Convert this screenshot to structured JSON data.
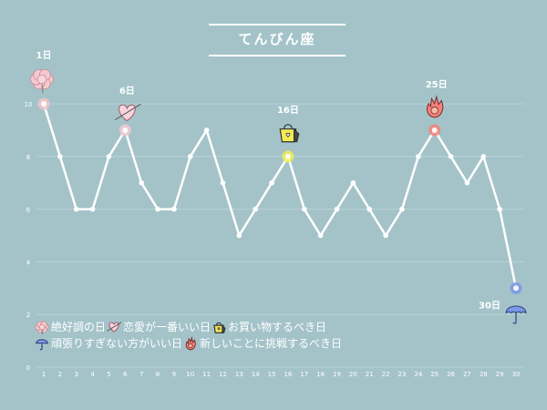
{
  "title": "てんびん座",
  "colors": {
    "background": "#a3c3c9",
    "line": "#ffffff",
    "grid": "#b9d2d6",
    "love": "#f2c7d2",
    "shopping": "#f5ec55",
    "challenge": "#f2827b",
    "caution": "#7b98e8",
    "good": "#f3c4c7"
  },
  "chart_data": {
    "type": "line",
    "title": "てんびん座",
    "x": [
      1,
      2,
      3,
      4,
      5,
      6,
      7,
      8,
      9,
      10,
      11,
      12,
      13,
      14,
      15,
      16,
      17,
      18,
      19,
      20,
      21,
      22,
      23,
      24,
      25,
      26,
      27,
      28,
      29,
      30
    ],
    "values": [
      10,
      8,
      6,
      6,
      8,
      9,
      7,
      6,
      6,
      8,
      9,
      7,
      5,
      6,
      7,
      8,
      6,
      5,
      6,
      7,
      6,
      5,
      6,
      8,
      9,
      8,
      7,
      8,
      6,
      3
    ],
    "xlim": [
      1,
      30
    ],
    "ylim": [
      0,
      10
    ],
    "yticks": [
      0,
      2,
      4,
      6,
      8,
      10
    ],
    "grid": true,
    "highlights": [
      {
        "day": 1,
        "label": "1日",
        "category": "good",
        "icon": "flower-icon"
      },
      {
        "day": 6,
        "label": "6日",
        "category": "love",
        "icon": "heart-icon"
      },
      {
        "day": 16,
        "label": "16日",
        "category": "shopping",
        "icon": "shopping-bag-icon"
      },
      {
        "day": 25,
        "label": "25日",
        "category": "challenge",
        "icon": "flame-icon"
      },
      {
        "day": 30,
        "label": "30日",
        "category": "caution",
        "icon": "umbrella-icon"
      }
    ]
  },
  "legend": {
    "rows": [
      [
        {
          "label": "絶好調の日",
          "icon": "flower-icon"
        },
        {
          "label": "恋愛が一番いい日",
          "icon": "heart-icon"
        },
        {
          "label": "お買い物するべき日",
          "icon": "shopping-bag-icon"
        }
      ],
      [
        {
          "label": "頑張りすぎない方がいい日",
          "icon": "umbrella-icon"
        },
        {
          "label": "新しいことに挑戦するべき日",
          "icon": "flame-icon"
        }
      ]
    ]
  }
}
